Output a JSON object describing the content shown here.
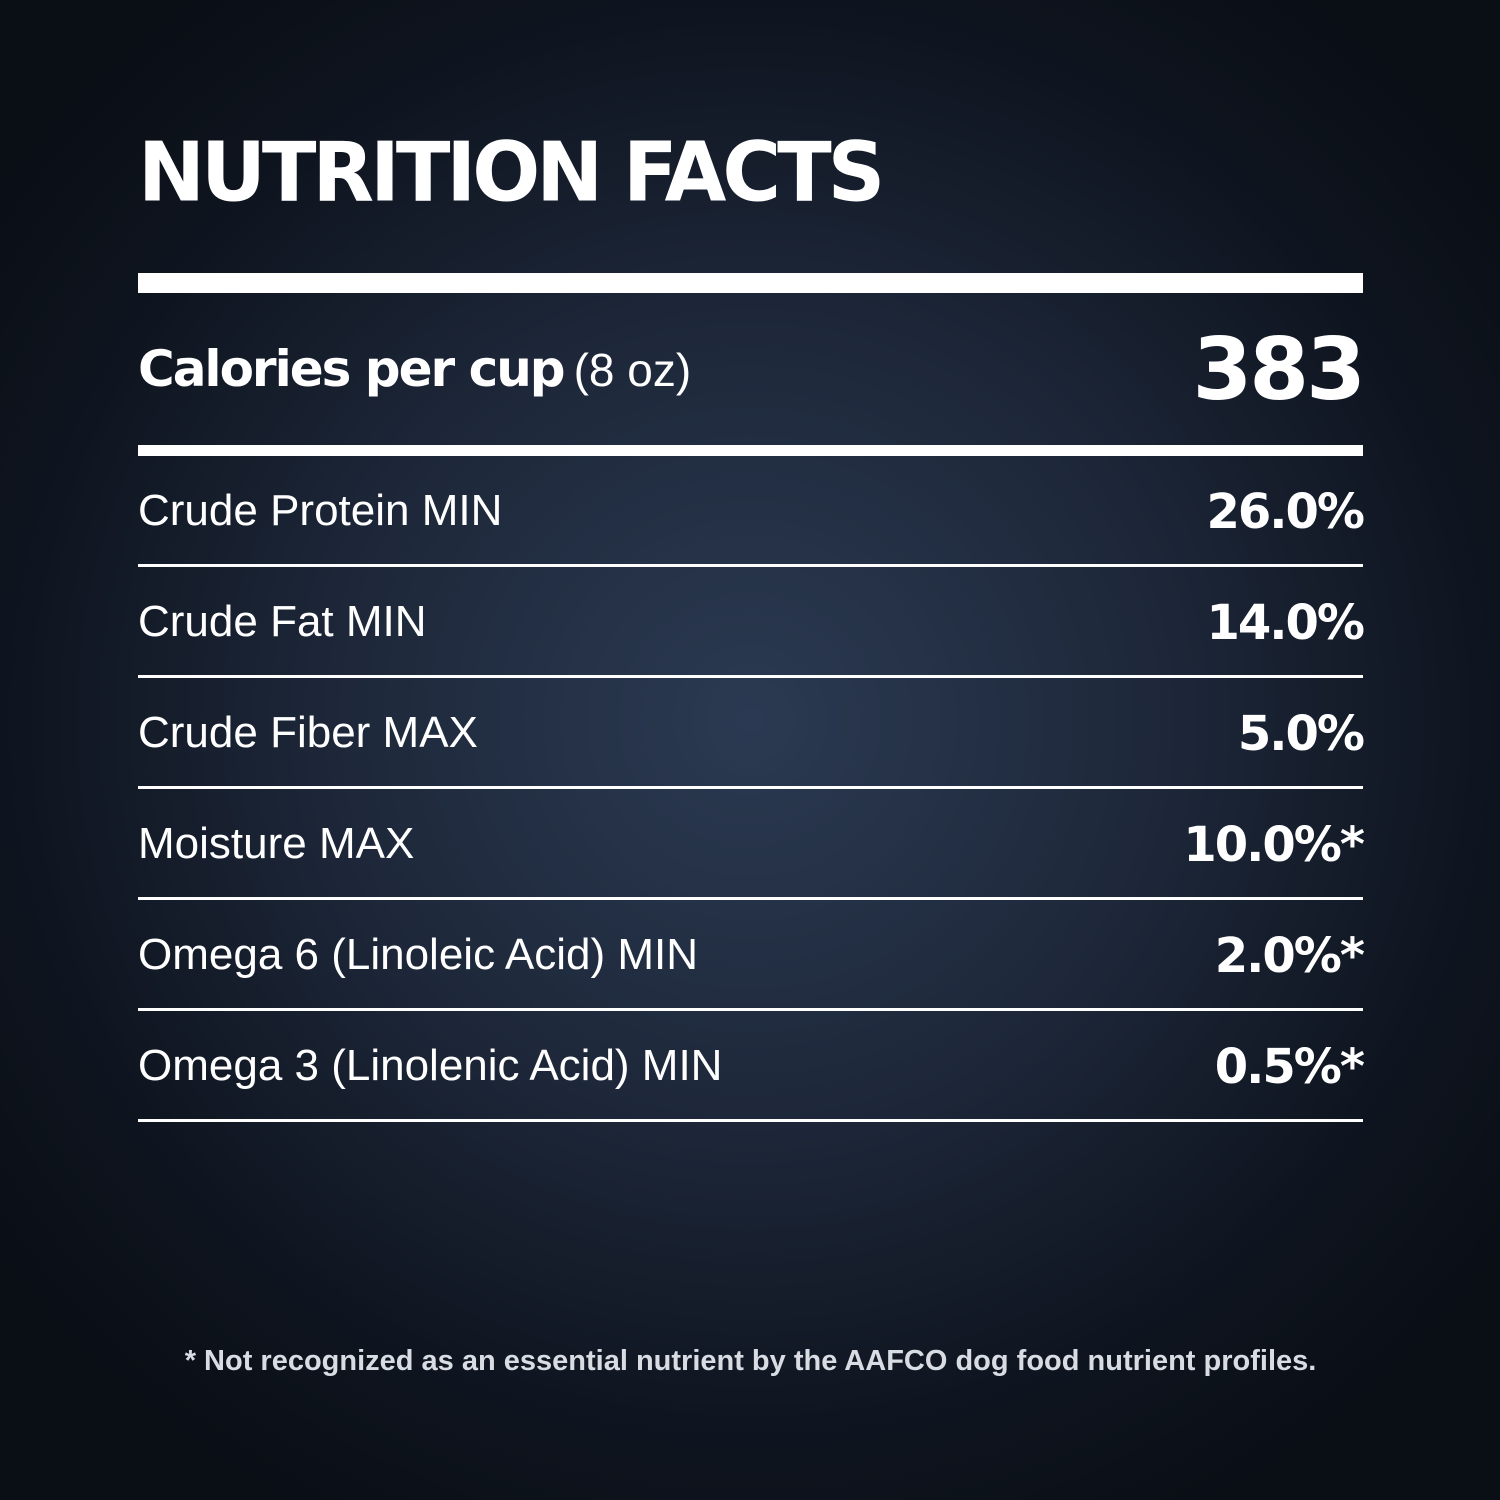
{
  "title": "NUTRITION FACTS",
  "calories": {
    "label": "Calories per cup",
    "unit": "(8 oz)",
    "value": "383"
  },
  "nutrients": [
    {
      "label": "Crude Protein MIN",
      "value": "26.0%"
    },
    {
      "label": "Crude Fat MIN",
      "value": "14.0%"
    },
    {
      "label": "Crude Fiber MAX",
      "value": "5.0%"
    },
    {
      "label": "Moisture MAX",
      "value": "10.0%*"
    },
    {
      "label": "Omega 6 (Linoleic Acid) MIN",
      "value": "2.0%*"
    },
    {
      "label": "Omega 3 (Linolenic Acid) MIN",
      "value": "0.5%*"
    }
  ],
  "footnote": "* Not recognized as an essential nutrient by the AAFCO dog food nutrient profiles."
}
